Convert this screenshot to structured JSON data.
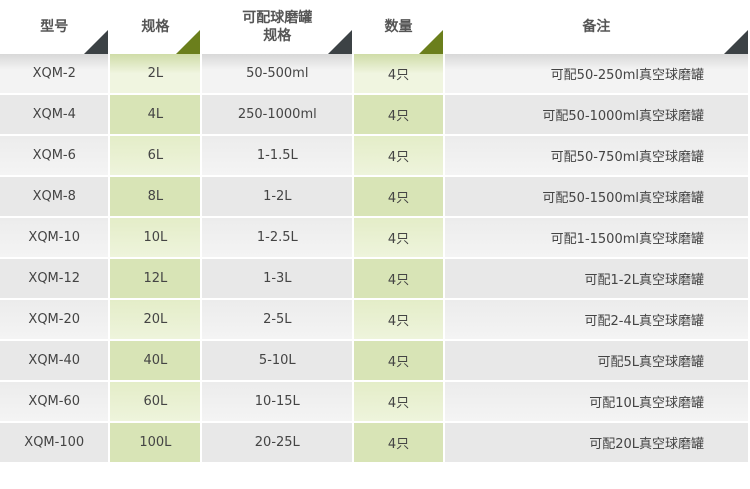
{
  "headers": [
    "型号",
    "规格",
    "可配球磨罐\n规格",
    "数量",
    "备注"
  ],
  "header_l1": "可配球磨罐",
  "header_l2": "规格",
  "rows": [
    [
      "XQM-2",
      "2L",
      "50-500ml",
      "4只",
      "可配50-250ml真空球磨罐"
    ],
    [
      "XQM-4",
      "4L",
      "250-1000ml",
      "4只",
      "可配50-1000ml真空球磨罐"
    ],
    [
      "XQM-6",
      "6L",
      "1-1.5L",
      "4只",
      "可配50-750ml真空球磨罐"
    ],
    [
      "XQM-8",
      "8L",
      "1-2L",
      "4只",
      "可配50-1500ml真空球磨罐"
    ],
    [
      "XQM-10",
      "10L",
      "1-2.5L",
      "4只",
      "可配1-1500ml真空球磨罐"
    ],
    [
      "XQM-12",
      "12L",
      "1-3L",
      "4只",
      "可配1-2L真空球磨罐"
    ],
    [
      "XQM-20",
      "20L",
      "2-5L",
      "4只",
      "可配2-4L真空球磨罐"
    ],
    [
      "XQM-40",
      "40L",
      "5-10L",
      "4只",
      "可配5L真空球磨罐"
    ],
    [
      "XQM-60",
      "60L",
      "10-15L",
      "4只",
      "可配10L真空球磨罐"
    ],
    [
      "XQM-100",
      "100L",
      "20-25L",
      "4只",
      "可配20L真空球磨罐"
    ]
  ],
  "colors": {
    "accent_green": "#6b7f1c",
    "dark_corner": "#3c4245",
    "green_cell": "#e4edc8"
  }
}
